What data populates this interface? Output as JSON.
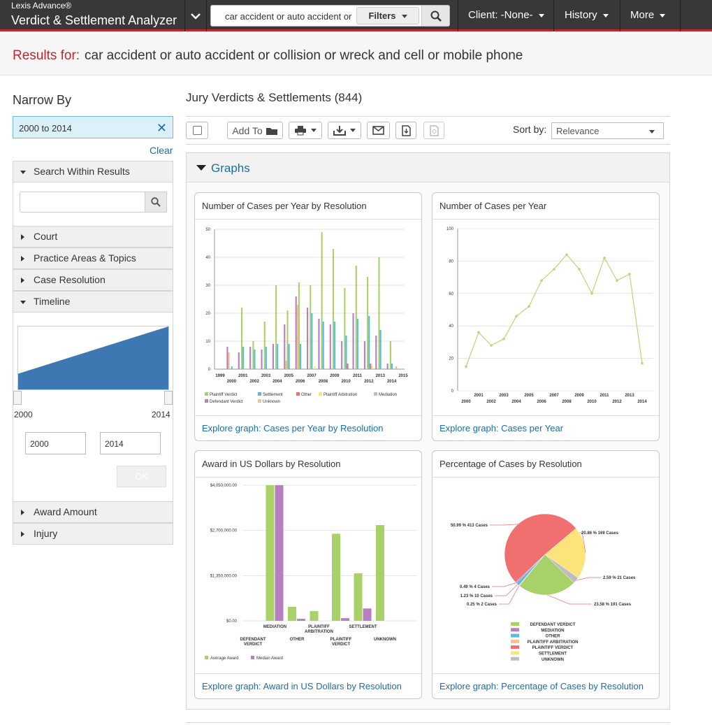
{
  "app": {
    "line1": "Lexis Advance®",
    "line2": "Verdict & Settlement Analyzer"
  },
  "search": {
    "query": "car accident or auto accident or collision or wreck and cell or mobile phone",
    "filters": "Filters"
  },
  "nav": {
    "client": "Client: -None-",
    "history": "History",
    "more": "More"
  },
  "results": {
    "label": "Results for:",
    "query": "car accident or auto accident or collision or wreck and cell or mobile phone"
  },
  "sidebar": {
    "title": "Narrow By",
    "chip": "2000 to 2014",
    "clear": "Clear",
    "facets": {
      "search_within": "Search Within Results",
      "court": "Court",
      "practice": "Practice Areas & Topics",
      "resolution": "Case Resolution",
      "timeline": "Timeline",
      "award": "Award Amount",
      "injury": "Injury"
    },
    "timeline": {
      "min": "2000",
      "max": "2014",
      "from": "2000",
      "to": "2014",
      "ok": "OK",
      "level_from": 0.25,
      "level_to": 1.0
    }
  },
  "main": {
    "title": "Jury Verdicts & Settlements (844)",
    "add_to": "Add To",
    "sort_label": "Sort by:",
    "sort_value": "Relevance",
    "graphs": "Graphs"
  },
  "colors": {
    "plaintiff_verdict": "#a8d16a",
    "settlement": "#5bb9e8",
    "other": "#f07070",
    "plaintiff_arbitration": "#fde47a",
    "mediation": "#bdbdbd",
    "defendant_verdict": "#b77fc0",
    "unknown": "#f5c08a",
    "line": "#b7d77a",
    "accent": "#c1272d",
    "link": "#1a6ea8"
  },
  "charts": {
    "c1": {
      "title": "Number of Cases per Year by Resolution",
      "link": "Explore graph: Cases per Year by Resolution"
    },
    "c2": {
      "title": "Number of Cases per Year",
      "link": "Explore graph: Cases per Year"
    },
    "c3": {
      "title": "Award in US Dollars by Resolution",
      "link": "Explore graph: Award in US Dollars by Resolution"
    },
    "c4": {
      "title": "Percentage of Cases by Resolution",
      "link": "Explore graph: Percentage of Cases by Resolution"
    }
  },
  "chart_data": [
    {
      "type": "bar",
      "title": "Number of Cases per Year by Resolution",
      "categories": [
        "1999",
        "2000",
        "2001",
        "2002",
        "2003",
        "2004",
        "2005",
        "2006",
        "2007",
        "2008",
        "2009",
        "2010",
        "2011",
        "2012",
        "2013",
        "2014",
        "2015"
      ],
      "ylim": [
        0,
        50
      ],
      "yticks": [
        0,
        10,
        20,
        30,
        40,
        50
      ],
      "series": [
        {
          "name": "Plaintiff Verdict",
          "values": [
            0,
            0,
            22,
            10,
            17,
            30,
            21,
            31,
            30,
            49,
            43,
            29,
            37,
            33,
            40,
            10,
            0
          ]
        },
        {
          "name": "Settlement",
          "values": [
            0,
            1,
            8,
            7,
            8,
            9,
            9,
            9,
            20,
            17,
            17,
            12,
            18,
            19,
            14,
            2,
            0
          ]
        },
        {
          "name": "Other",
          "values": [
            0,
            0,
            0,
            0,
            0,
            0,
            0,
            0,
            0,
            0,
            0,
            2,
            0,
            2,
            0,
            0,
            0
          ]
        },
        {
          "name": "Plaintiff Arbitration",
          "values": [
            0,
            0,
            0,
            0,
            0,
            0,
            0,
            0,
            1,
            0,
            0,
            0,
            0,
            1,
            0,
            0,
            0
          ]
        },
        {
          "name": "Mediation",
          "values": [
            0,
            0,
            0,
            0,
            0,
            0,
            0,
            0,
            0,
            0,
            0,
            0,
            0,
            0,
            0,
            1,
            0
          ]
        },
        {
          "name": "Defendant Verdict",
          "values": [
            0,
            8,
            6,
            8,
            7,
            9,
            16,
            26,
            22,
            18,
            16,
            10,
            20,
            10,
            12,
            2,
            0
          ]
        },
        {
          "name": "Unknown",
          "values": [
            0,
            6,
            0,
            0,
            0,
            0,
            3,
            23,
            0,
            0,
            0,
            0,
            0,
            0,
            0,
            0,
            0
          ]
        }
      ]
    },
    {
      "type": "line",
      "title": "Number of Cases per Year",
      "categories": [
        "2000",
        "2001",
        "2002",
        "2003",
        "2004",
        "2005",
        "2006",
        "2007",
        "2008",
        "2009",
        "2010",
        "2011",
        "2012",
        "2013",
        "2014"
      ],
      "values": [
        15,
        36,
        28,
        32,
        46,
        52,
        68,
        75,
        84,
        75,
        60,
        82,
        68,
        72,
        17
      ],
      "ylim": [
        0,
        100
      ],
      "yticks": [
        0,
        20,
        40,
        60,
        80,
        100
      ]
    },
    {
      "type": "bar",
      "title": "Award in US Dollars by Resolution",
      "categories": [
        [
          "DEFENDANT",
          "VERDICT"
        ],
        [
          "MEDIATION"
        ],
        [
          "OTHER"
        ],
        [
          "PLAINTIFF",
          "ARBITRATION"
        ],
        [
          "PLAINTIFF",
          "VERDICT"
        ],
        [
          "SETTLEMENT"
        ],
        [
          "UNKNOWN"
        ]
      ],
      "ylim": [
        0,
        4050000
      ],
      "ytick_labels": [
        "$0.00",
        "$1,350,000.00",
        "$2,700,000.00",
        "$4,050,000.00"
      ],
      "series": [
        {
          "name": "Average Award",
          "values": [
            0,
            4050000,
            420000,
            290000,
            2600000,
            1420000,
            2860000
          ]
        },
        {
          "name": "Median Award",
          "values": [
            0,
            4050000,
            60000,
            0,
            80000,
            370000,
            0
          ]
        }
      ]
    },
    {
      "type": "pie",
      "title": "Percentage of Cases by Resolution",
      "slices": [
        {
          "name": "DEFENDANT VERDICT",
          "pct": 23.58,
          "label": "23.58 % 191 Cases"
        },
        {
          "name": "MEDIATION",
          "pct": 0.49,
          "label": "0.49 % 4 Cases"
        },
        {
          "name": "OTHER",
          "pct": 1.23,
          "label": "1.23 % 10 Cases"
        },
        {
          "name": "PLAINTIFF ARBITRATION",
          "pct": 0.25,
          "label": "0.25 % 2 Cases"
        },
        {
          "name": "PLAINTIFF VERDICT",
          "pct": 50.99,
          "label": "50.99 % 413 Cases"
        },
        {
          "name": "SETTLEMENT",
          "pct": 20.86,
          "label": "20.86 % 169 Cases"
        },
        {
          "name": "UNKNOWN",
          "pct": 2.59,
          "label": "2.59 % 21 Cases"
        }
      ]
    }
  ]
}
